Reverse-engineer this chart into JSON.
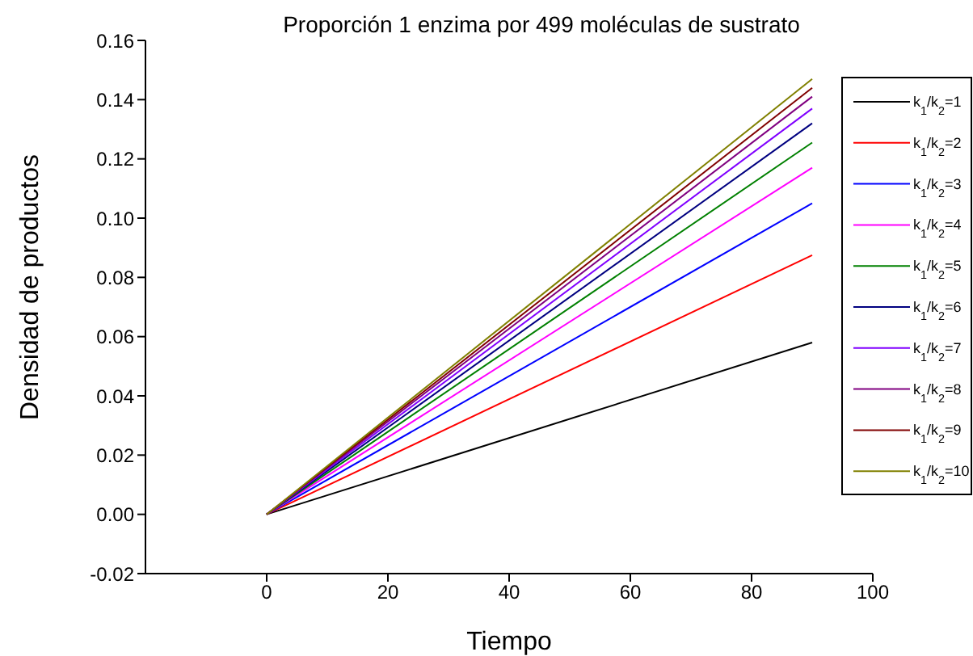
{
  "chart_data": {
    "type": "line",
    "title": "Proporción 1 enzima por 499 moléculas de sustrato",
    "xlabel": "Tiempo",
    "ylabel": "Densidad de productos",
    "x": [
      0,
      90
    ],
    "xlim": [
      -20,
      100
    ],
    "xticks": [
      0,
      20,
      40,
      60,
      80,
      100
    ],
    "ylim": [
      -0.02,
      0.16
    ],
    "yticks": [
      -0.02,
      {
        "value": 0,
        "label": "0.00"
      },
      0.02,
      0.04,
      0.06,
      0.08,
      {
        "value": 0.1,
        "label": "0.10"
      },
      0.12,
      0.14,
      0.16
    ],
    "grid": false,
    "legend": "right",
    "marker": "none",
    "line_style": "solid",
    "series": [
      {
        "name": "k$_{1}$/k$_{2}$=1",
        "color": "#000000",
        "values": [
          0,
          0.058
        ]
      },
      {
        "name": "k$_{1}$/k$_{2}$=2",
        "color": "#ff0000",
        "values": [
          0,
          0.0875
        ]
      },
      {
        "name": "k$_{1}$/k$_{2}$=3",
        "color": "#0000ff",
        "values": [
          0,
          0.105
        ]
      },
      {
        "name": "k$_{1}$/k$_{2}$=4",
        "color": "#ff00ff",
        "values": [
          0,
          0.117
        ]
      },
      {
        "name": "k$_{1}$/k$_{2}$=5",
        "color": "#008000",
        "values": [
          0,
          0.1255
        ]
      },
      {
        "name": "k$_{1}$/k$_{2}$=6",
        "color": "#000080",
        "values": [
          0,
          0.132
        ]
      },
      {
        "name": "k$_{1}$/k$_{2}$=7",
        "color": "#8000ff",
        "values": [
          0,
          0.137
        ]
      },
      {
        "name": "k$_{1}$/k$_{2}$=8",
        "color": "#800080",
        "values": [
          0,
          0.141
        ]
      },
      {
        "name": "k$_{1}$/k$_{2}$=9",
        "color": "#800000",
        "values": [
          0,
          0.144
        ]
      },
      {
        "name": "k$_{1}$/k$_{2}$=10",
        "color": "#808000",
        "values": [
          0,
          0.147
        ]
      }
    ]
  }
}
